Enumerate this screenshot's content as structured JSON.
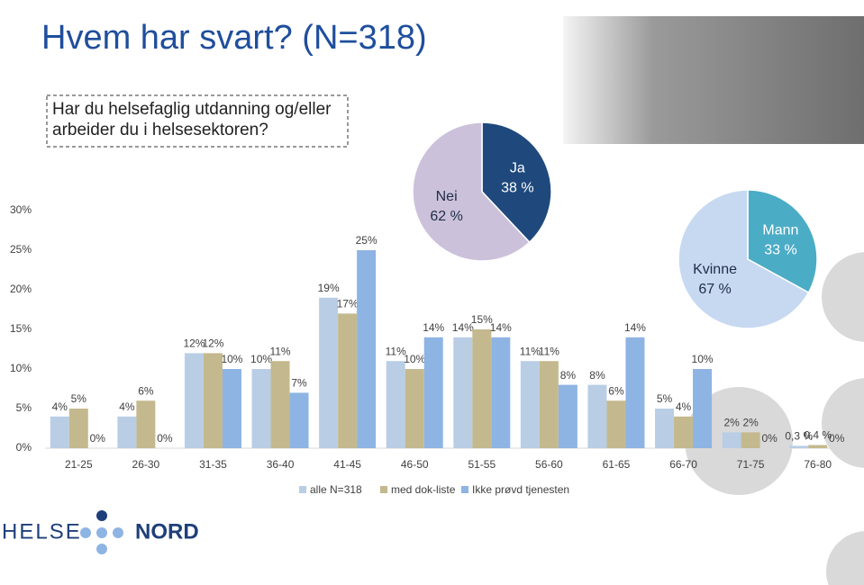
{
  "title": "Hvem har svart? (N=318)",
  "question": "Har du helsefaglig utdanning og/eller arbeider du i helsesektoren?",
  "logo": {
    "left": "HELSE",
    "right": "NORD"
  },
  "chart_data": [
    {
      "type": "bar",
      "categories": [
        "21-25",
        "26-30",
        "31-35",
        "36-40",
        "41-45",
        "46-50",
        "51-55",
        "56-60",
        "61-65",
        "66-70",
        "71-75",
        "76-80"
      ],
      "ylim": [
        0,
        30
      ],
      "yticks": [
        {
          "value": 0,
          "label": "0%"
        },
        {
          "value": 5,
          "label": "5%"
        },
        {
          "value": 10,
          "label": "10%"
        },
        {
          "value": 15,
          "label": "15%"
        },
        {
          "value": 20,
          "label": "20%"
        },
        {
          "value": 25,
          "label": "25%"
        },
        {
          "value": 30,
          "label": "30%"
        }
      ],
      "series": [
        {
          "name": "alle N=318",
          "color": "#b9cde5",
          "values": [
            4,
            4,
            12,
            10,
            19,
            11,
            14,
            11,
            8,
            5,
            2,
            0.3
          ],
          "value_labels": [
            "4%",
            "4%",
            "12%",
            "10%",
            "19%",
            "11%",
            "14%",
            "11%",
            "8%",
            "5%",
            "2%",
            "0,3 %"
          ]
        },
        {
          "name": "med dok-liste",
          "color": "#c4b98e",
          "values": [
            5,
            6,
            12,
            11,
            17,
            10,
            15,
            11,
            6,
            4,
            2,
            0.4
          ],
          "value_labels": [
            "5%",
            "6%",
            "12%",
            "11%",
            "17%",
            "10%",
            "15%",
            "11%",
            "6%",
            "4%",
            "2%",
            "0,4 %"
          ]
        },
        {
          "name": "Ikke prøvd tjenesten",
          "color": "#8eb4e3",
          "values": [
            0,
            0,
            10,
            7,
            25,
            14,
            14,
            8,
            14,
            10,
            0,
            0
          ],
          "value_labels": [
            "0%",
            "0%",
            "10%",
            "7%",
            "25%",
            "14%",
            "14%",
            "8%",
            "14%",
            "10%",
            "0%",
            "0%"
          ]
        }
      ]
    },
    {
      "type": "pie",
      "categories": [
        "Ja",
        "Nei"
      ],
      "values": [
        38,
        62
      ],
      "value_labels": [
        "38 %",
        "62 %"
      ],
      "colors": [
        "#1f497d",
        "#ccc1da"
      ]
    },
    {
      "type": "pie",
      "categories": [
        "Mann",
        "Kvinne"
      ],
      "values": [
        33,
        67
      ],
      "value_labels": [
        "33 %",
        "67 %"
      ],
      "colors": [
        "#4bacc6",
        "#c6d9f1"
      ]
    }
  ]
}
